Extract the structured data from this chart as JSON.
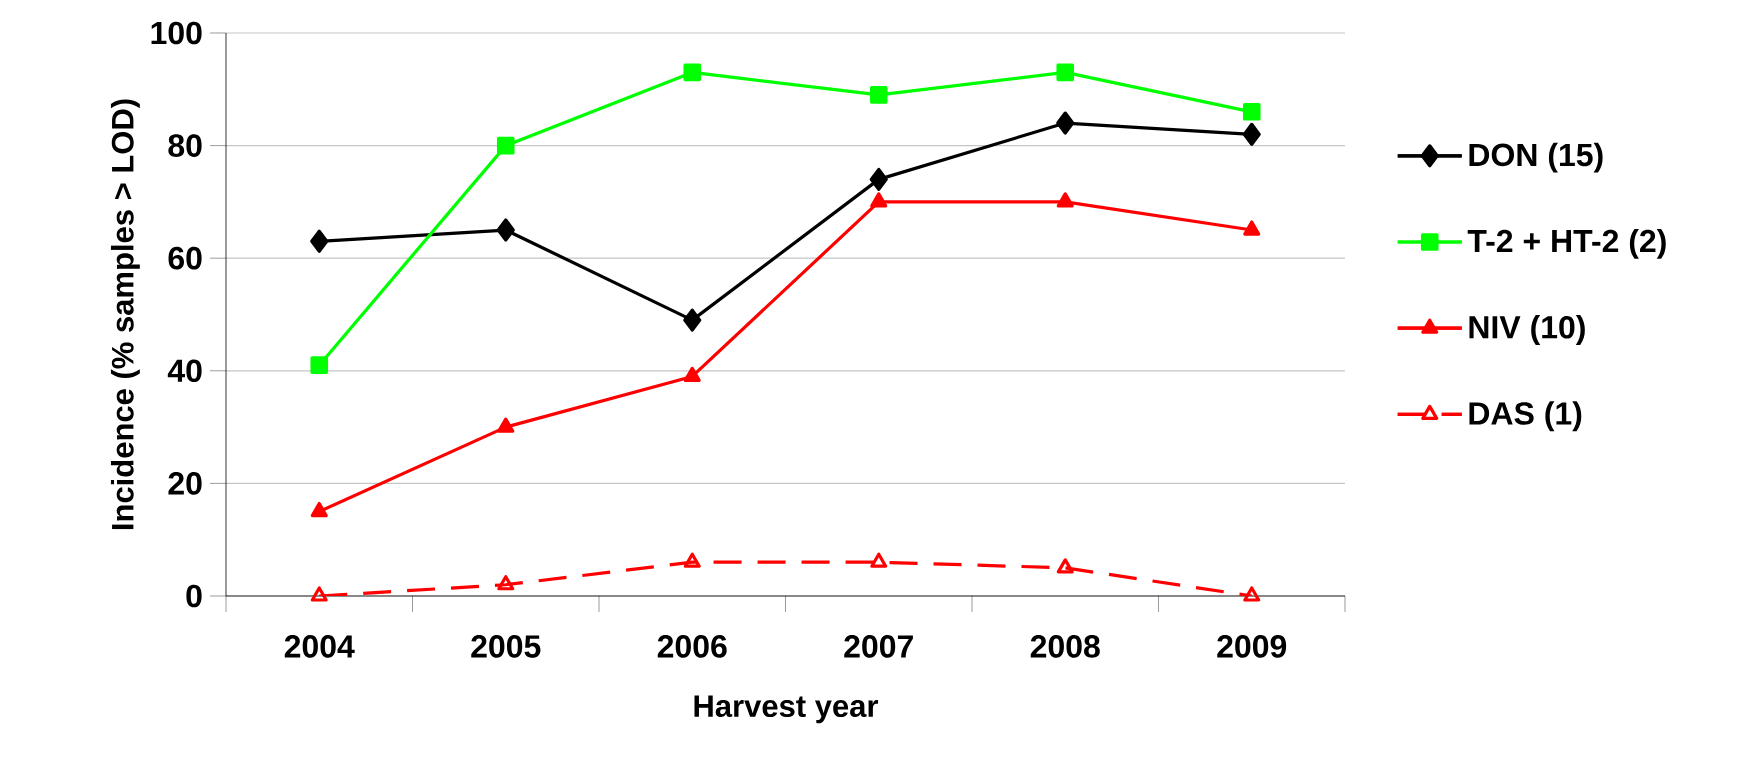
{
  "chart_data": {
    "type": "line",
    "xlabel": "Harvest year",
    "ylabel": "Incidence (% samples > LOD)",
    "categories": [
      "2004",
      "2005",
      "2006",
      "2007",
      "2008",
      "2009"
    ],
    "series": [
      {
        "name": "DON  (15)",
        "color": "#000000",
        "marker": "diamond",
        "line_style": "solid",
        "values": [
          63,
          65,
          49,
          74,
          84,
          82
        ]
      },
      {
        "name": "T-2 + HT-2 (2)",
        "color": "#00ff00",
        "marker": "square",
        "line_style": "solid",
        "values": [
          41,
          80,
          93,
          89,
          93,
          86
        ]
      },
      {
        "name": "NIV (10)",
        "color": "#ff0000",
        "marker": "triangle",
        "line_style": "solid",
        "values": [
          15,
          30,
          39,
          70,
          70,
          65
        ]
      },
      {
        "name": "DAS (1)",
        "color": "#ff0000",
        "marker": "triangle-open",
        "line_style": "dashed",
        "values": [
          0,
          2,
          6,
          6,
          5,
          0
        ]
      }
    ],
    "ylim": [
      0,
      100
    ],
    "yticks": [
      0,
      20,
      40,
      60,
      80,
      100
    ],
    "grid": "y",
    "legend": "right"
  }
}
